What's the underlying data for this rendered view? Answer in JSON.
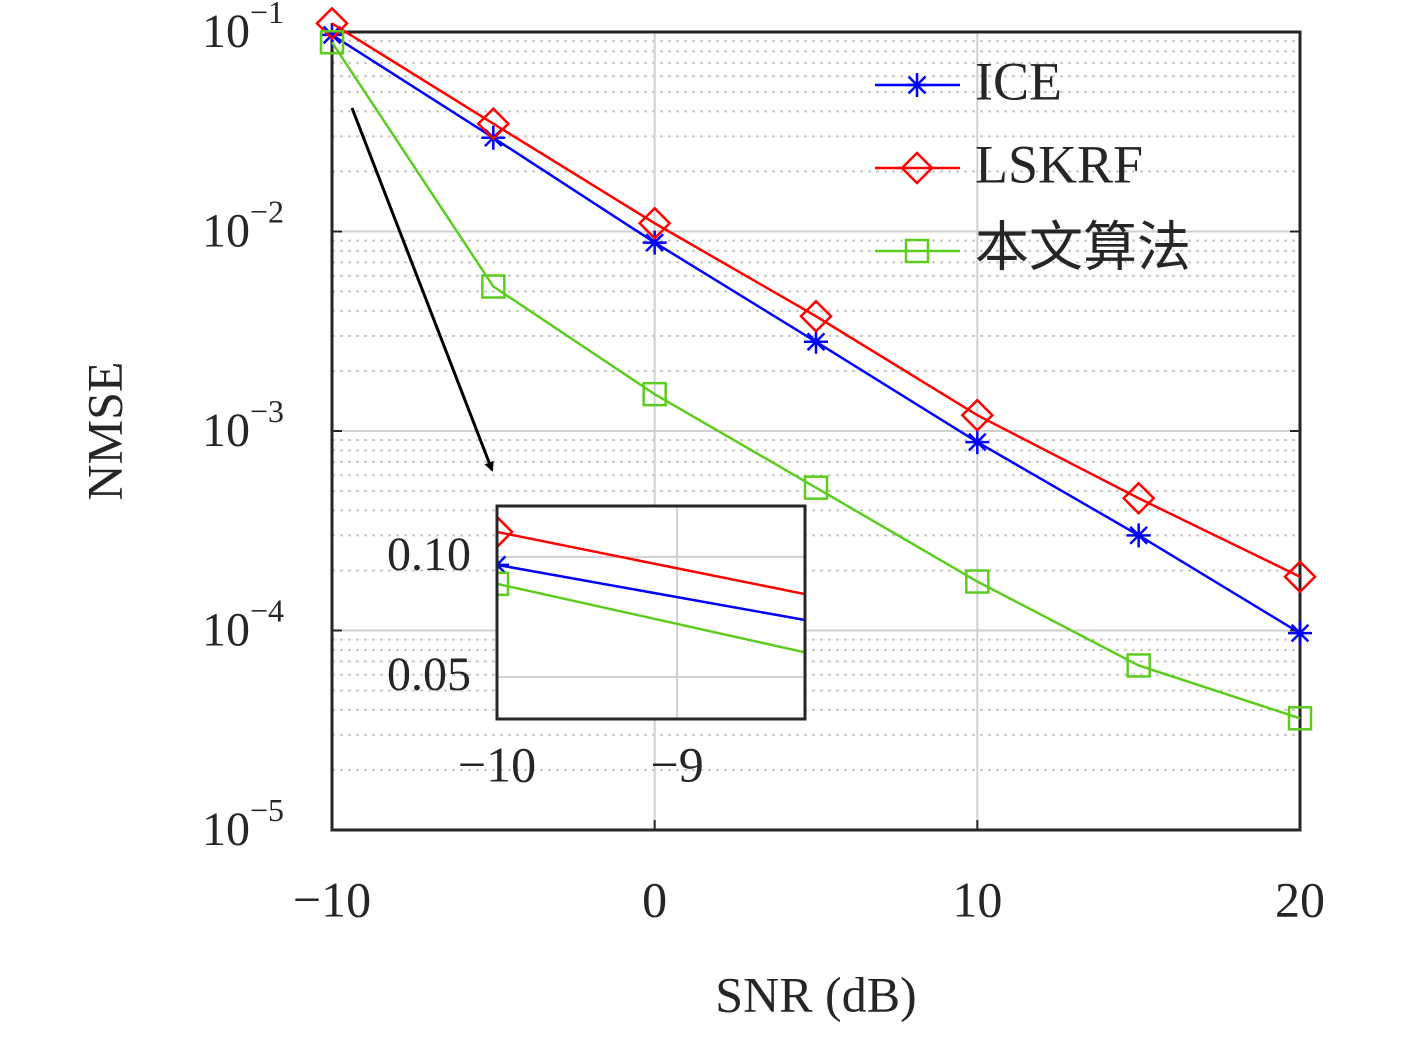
{
  "chart_data": {
    "type": "line",
    "xlabel": "SNR (dB)",
    "ylabel": "NMSE",
    "x": [
      -10,
      -5,
      0,
      5,
      10,
      15,
      20
    ],
    "series": [
      {
        "name": "ICE",
        "color": "#0000ff",
        "marker": "asterisk",
        "values": [
          0.0967,
          0.0295,
          0.0088,
          0.0028,
          0.00088,
          0.0003,
          9.7e-05
        ]
      },
      {
        "name": "LSKRF",
        "color": "#ff0000",
        "marker": "diamond",
        "values": [
          0.1104,
          0.0347,
          0.011,
          0.00376,
          0.0012,
          0.00046,
          0.000186
        ]
      },
      {
        "name": "本文算法",
        "color": "#5ccc1f",
        "marker": "square",
        "values": [
          0.0888,
          0.0053,
          0.00153,
          0.00052,
          0.000176,
          6.68e-05,
          3.63e-05
        ]
      }
    ],
    "xlim": [
      -10,
      20
    ],
    "xticks": [
      {
        "value": -10,
        "label": "−10"
      },
      0,
      10,
      20
    ],
    "ylim": [
      1e-05,
      0.1
    ],
    "yticks": [
      {
        "value": 1e-05,
        "label": "10",
        "exponent": "−5"
      },
      {
        "value": 0.0001,
        "label": "10",
        "exponent": "−4"
      },
      {
        "value": 0.001,
        "label": "10",
        "exponent": "−3"
      },
      {
        "value": 0.01,
        "label": "10",
        "exponent": "−2"
      },
      {
        "value": 0.1,
        "label": "10",
        "exponent": "−1"
      }
    ],
    "log_y": true,
    "grid": true,
    "legend": "upper right",
    "inset": {
      "xlim": [
        -10,
        -8.29
      ],
      "xticks": [
        {
          "value": -10,
          "label": "−10"
        },
        {
          "value": -9,
          "label": "−9"
        }
      ],
      "ylim": [
        0.0325,
        0.1212
      ],
      "yticks": [
        0.05,
        {
          "value": 0.1,
          "label": "0.10"
        }
      ]
    }
  }
}
